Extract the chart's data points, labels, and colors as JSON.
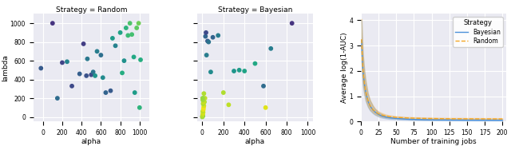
{
  "scatter_random": {
    "alpha": [
      -20,
      100,
      150,
      200,
      250,
      300,
      380,
      420,
      450,
      460,
      500,
      520,
      540,
      560,
      600,
      620,
      650,
      700,
      720,
      750,
      800,
      820,
      840,
      860,
      880,
      900,
      920,
      940,
      950,
      970,
      990,
      1000,
      1010
    ],
    "lambda": [
      520,
      1000,
      200,
      580,
      590,
      330,
      460,
      780,
      440,
      620,
      450,
      480,
      440,
      700,
      660,
      420,
      260,
      280,
      840,
      760,
      900,
      470,
      600,
      950,
      870,
      1000,
      880,
      640,
      260,
      950,
      1000,
      100,
      610
    ],
    "color_vals": [
      0.28,
      0.15,
      0.35,
      0.2,
      0.45,
      0.22,
      0.3,
      0.18,
      0.25,
      0.4,
      0.22,
      0.38,
      0.52,
      0.42,
      0.36,
      0.48,
      0.32,
      0.28,
      0.55,
      0.44,
      0.58,
      0.62,
      0.5,
      0.65,
      0.68,
      0.72,
      0.7,
      0.6,
      0.55,
      0.75,
      0.78,
      0.65,
      0.62
    ]
  },
  "scatter_bayesian": {
    "alpha": [
      5,
      10,
      10,
      15,
      20,
      25,
      30,
      35,
      40,
      50,
      60,
      80,
      100,
      150,
      200,
      250,
      300,
      350,
      400,
      500,
      580,
      600,
      650,
      850
    ],
    "lambda": [
      10,
      150,
      200,
      250,
      160,
      200,
      860,
      900,
      660,
      810,
      800,
      480,
      850,
      870,
      260,
      130,
      490,
      500,
      490,
      570,
      330,
      100,
      730,
      1000
    ],
    "color_vals": [
      0.72,
      0.82,
      0.85,
      0.88,
      0.86,
      0.9,
      0.32,
      0.22,
      0.42,
      0.28,
      0.38,
      0.48,
      0.32,
      0.42,
      0.88,
      0.9,
      0.52,
      0.55,
      0.58,
      0.6,
      0.35,
      0.95,
      0.42,
      0.15
    ],
    "cluster_alpha": [
      0,
      2,
      5,
      8,
      5,
      10,
      12,
      15,
      8,
      12,
      5,
      3
    ],
    "cluster_lambda": [
      0,
      10,
      30,
      50,
      60,
      80,
      100,
      120,
      140,
      160,
      180,
      200
    ],
    "cluster_colors": [
      0.85,
      0.88,
      0.92,
      0.95,
      0.9,
      0.96,
      0.98,
      0.94,
      0.88,
      0.92,
      0.86,
      0.84
    ]
  },
  "random_xlim": [
    -100,
    1100
  ],
  "bayesian_xlim": [
    -50,
    1050
  ],
  "scatter_ylim": [
    -50,
    1100
  ],
  "line_x": [
    1,
    2,
    3,
    5,
    7,
    10,
    13,
    17,
    20,
    25,
    30,
    35,
    40,
    50,
    60,
    65,
    70,
    75,
    80,
    90,
    100,
    110,
    125,
    150,
    175,
    200
  ],
  "bayesian_mean": [
    3.2,
    2.5,
    2.0,
    1.5,
    1.15,
    0.82,
    0.62,
    0.46,
    0.38,
    0.28,
    0.22,
    0.18,
    0.155,
    0.125,
    0.108,
    0.1,
    0.092,
    0.087,
    0.083,
    0.077,
    0.073,
    0.07,
    0.066,
    0.062,
    0.059,
    0.057
  ],
  "bayesian_lower": [
    2.4,
    1.8,
    1.4,
    1.05,
    0.8,
    0.58,
    0.44,
    0.33,
    0.27,
    0.2,
    0.155,
    0.128,
    0.11,
    0.09,
    0.077,
    0.072,
    0.066,
    0.062,
    0.059,
    0.054,
    0.051,
    0.049,
    0.046,
    0.043,
    0.041,
    0.04
  ],
  "bayesian_upper": [
    4.0,
    3.2,
    2.6,
    2.0,
    1.55,
    1.1,
    0.83,
    0.62,
    0.5,
    0.37,
    0.29,
    0.235,
    0.202,
    0.162,
    0.14,
    0.13,
    0.12,
    0.113,
    0.108,
    0.101,
    0.096,
    0.092,
    0.087,
    0.082,
    0.078,
    0.075
  ],
  "random_mean": [
    3.25,
    2.55,
    2.05,
    1.52,
    1.18,
    0.84,
    0.64,
    0.48,
    0.4,
    0.31,
    0.26,
    0.225,
    0.2,
    0.17,
    0.155,
    0.148,
    0.142,
    0.138,
    0.134,
    0.128,
    0.124,
    0.12,
    0.116,
    0.112,
    0.109,
    0.107
  ],
  "random_lower": [
    2.5,
    1.9,
    1.5,
    1.1,
    0.84,
    0.61,
    0.47,
    0.36,
    0.3,
    0.23,
    0.195,
    0.17,
    0.152,
    0.13,
    0.118,
    0.113,
    0.108,
    0.105,
    0.102,
    0.097,
    0.094,
    0.091,
    0.088,
    0.085,
    0.082,
    0.081
  ],
  "random_upper": [
    4.05,
    3.25,
    2.65,
    2.0,
    1.57,
    1.12,
    0.85,
    0.64,
    0.52,
    0.4,
    0.335,
    0.285,
    0.252,
    0.215,
    0.196,
    0.186,
    0.179,
    0.174,
    0.169,
    0.162,
    0.157,
    0.152,
    0.147,
    0.142,
    0.138,
    0.135
  ],
  "bayesian_color": "#4a90d9",
  "random_color": "#f5a623",
  "bg_color": "#eaeaf2",
  "grid_color": "white",
  "scatter_cmap": "viridis",
  "title_random": "Strategy = Random",
  "title_bayesian": "Strategy = Bayesian",
  "xlabel_scatter": "alpha",
  "ylabel_scatter": "lambda",
  "xlabel_line": "Number of training jobs",
  "ylabel_line": "Average log(1-AUC)",
  "legend_title": "Strategy",
  "scatter_yticks": [
    0,
    200,
    400,
    600,
    800,
    1000
  ],
  "scatter_xticks_random": [
    0,
    200,
    400,
    600,
    800,
    1000
  ],
  "scatter_xticks_bayesian": [
    0,
    200,
    400,
    600,
    800,
    1000
  ],
  "line_xticks": [
    0,
    25,
    50,
    75,
    100,
    125,
    150,
    175,
    200
  ]
}
